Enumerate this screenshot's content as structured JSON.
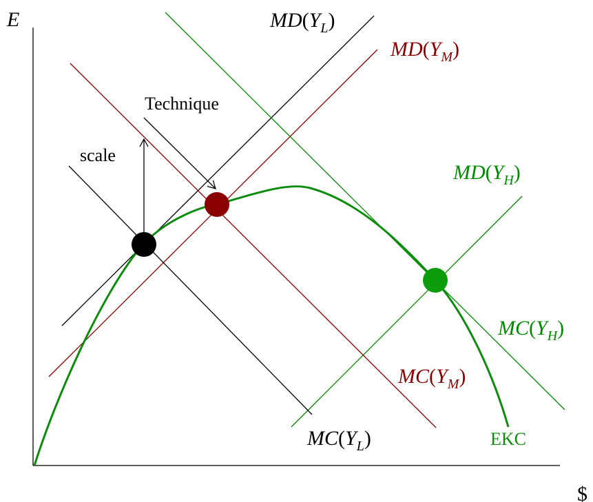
{
  "axes": {
    "y_label": "E",
    "x_label": "$"
  },
  "colors": {
    "black": "#000000",
    "dark_red": "#8b0000",
    "green": "#008a00",
    "ekc": "#0c8c0c"
  },
  "labels": {
    "md_low": {
      "fn": "MD",
      "sub": "L"
    },
    "md_mid": {
      "fn": "MD",
      "sub": "M"
    },
    "md_high": {
      "fn": "MD",
      "sub": "H"
    },
    "mc_low": {
      "fn": "MC",
      "sub": "L"
    },
    "mc_mid": {
      "fn": "MC",
      "sub": "M"
    },
    "mc_high": {
      "fn": "MC",
      "sub": "H"
    },
    "ekc": "EKC",
    "technique": "Technique",
    "scale": "scale"
  }
}
